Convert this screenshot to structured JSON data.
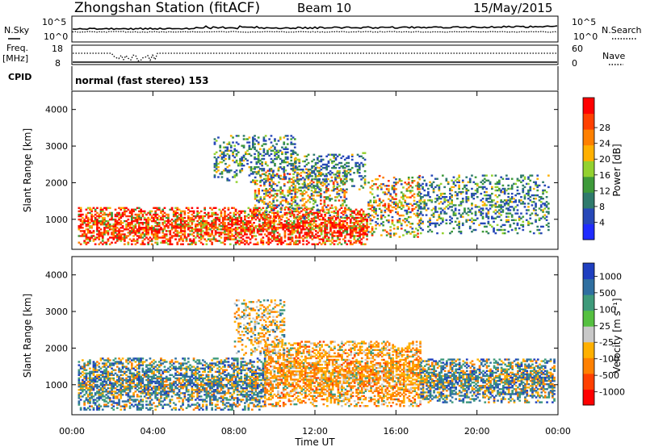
{
  "header": {
    "title": "Zhongshan Station (fitACF)",
    "beam": "Beam 10",
    "date": "15/May/2015"
  },
  "summary_panels": {
    "nsky_label": "N.Sky",
    "nsky_ticks": [
      "10^5",
      "10^0"
    ],
    "nsearch_label": "N.Search",
    "nsearch_ticks": [
      "10^5",
      "10^0"
    ],
    "freq_label": "Freq.",
    "freq_unit": "[MHz]",
    "freq_ticks": [
      "18",
      "8"
    ],
    "nave_label": "Nave",
    "nave_ticks": [
      "60",
      "0"
    ],
    "cpid_label": "CPID",
    "cpid_value": "normal (fast stereo) 153"
  },
  "chart_data": [
    {
      "type": "heatmap",
      "name": "power-panel",
      "ylabel": "Slant Range [km]",
      "xlabel": "Time UT",
      "x_range_hours": [
        0,
        24
      ],
      "y_range_km": [
        180,
        4500
      ],
      "y_ticks": [
        "1000",
        "2000",
        "3000",
        "4000"
      ],
      "x_ticks": [
        "00:00",
        "04:00",
        "08:00",
        "12:00",
        "16:00",
        "20:00",
        "00:00"
      ],
      "colorbar": {
        "label": "Power [dB]",
        "ticks": [
          "4",
          "8",
          "12",
          "16",
          "20",
          "24",
          "28"
        ],
        "colors": [
          "#1f2bff",
          "#2748b8",
          "#2f7a6c",
          "#3e9a3a",
          "#93d12f",
          "#ffb000",
          "#ff8000",
          "#ff4000",
          "#ff0000"
        ]
      },
      "regions": [
        {
          "t": [
            0.3,
            14.6
          ],
          "r": [
            300,
            1300
          ],
          "level": "high"
        },
        {
          "t": [
            9.0,
            13.5
          ],
          "r": [
            1000,
            2400
          ],
          "level": "medium"
        },
        {
          "t": [
            14.6,
            17.2
          ],
          "r": [
            500,
            2200
          ],
          "level": "medium"
        },
        {
          "t": [
            7.0,
            11.0
          ],
          "r": [
            2000,
            3300
          ],
          "level": "low"
        },
        {
          "t": [
            11.0,
            14.5
          ],
          "r": [
            1800,
            2800
          ],
          "level": "low"
        },
        {
          "t": [
            17.0,
            23.5
          ],
          "r": [
            600,
            2200
          ],
          "level": "low"
        }
      ]
    },
    {
      "type": "heatmap",
      "name": "velocity-panel",
      "ylabel": "Slant Range [km]",
      "xlabel": "Time UT",
      "x_range_hours": [
        0,
        24
      ],
      "y_range_km": [
        180,
        4500
      ],
      "y_ticks": [
        "1000",
        "2000",
        "3000",
        "4000"
      ],
      "x_ticks": [
        "00:00",
        "04:00",
        "08:00",
        "12:00",
        "16:00",
        "20:00",
        "00:00"
      ],
      "colorbar": {
        "label": "Velocity [m s⁻¹]",
        "ticks": [
          "1000",
          "500",
          "100",
          "25",
          "-25",
          "-100",
          "-500",
          "-1000"
        ],
        "colors": [
          "#1f3fc0",
          "#2f6fa0",
          "#3e9a7a",
          "#55c040",
          "#c8c8c8",
          "#ffb000",
          "#ff8000",
          "#ff4000",
          "#ff0000"
        ]
      },
      "regions": [
        {
          "t": [
            0.3,
            9.5
          ],
          "r": [
            300,
            1700
          ],
          "level": "toward"
        },
        {
          "t": [
            9.5,
            17.2
          ],
          "r": [
            400,
            2200
          ],
          "level": "away"
        },
        {
          "t": [
            8.0,
            10.5
          ],
          "r": [
            1800,
            3300
          ],
          "level": "mixed"
        },
        {
          "t": [
            17.2,
            23.8
          ],
          "r": [
            500,
            1700
          ],
          "level": "toward"
        }
      ]
    }
  ]
}
